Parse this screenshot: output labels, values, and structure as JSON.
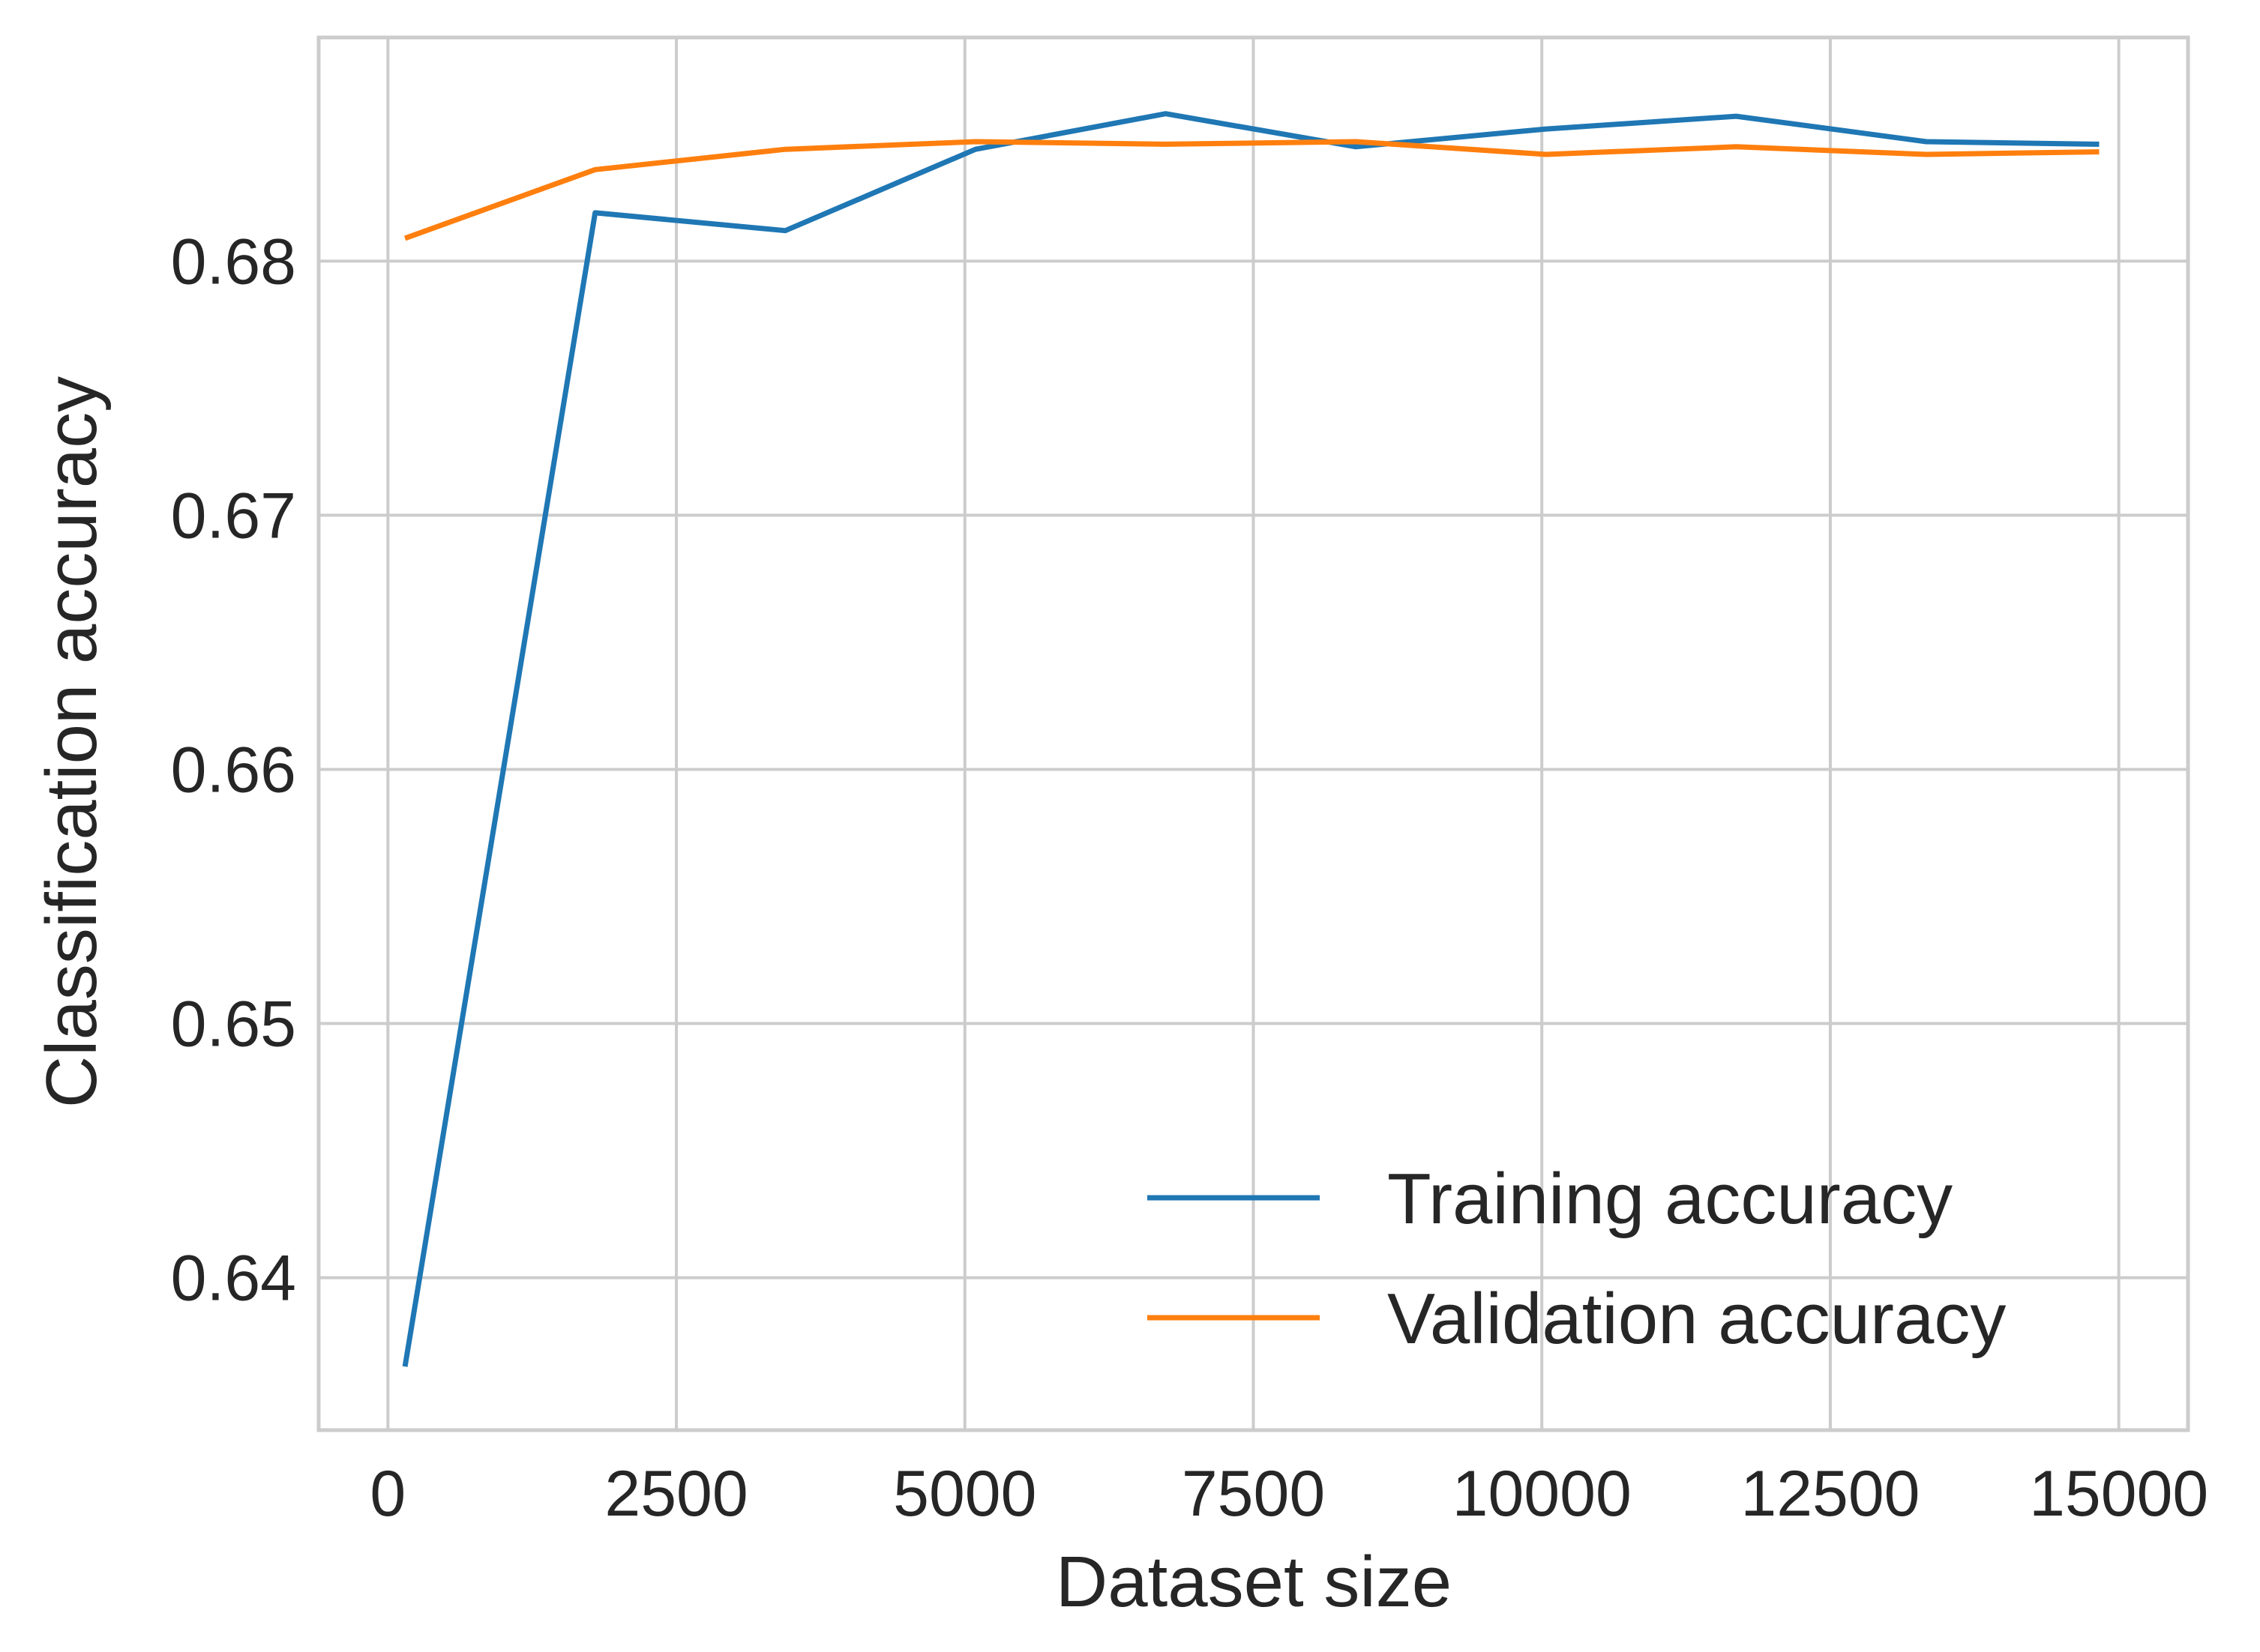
{
  "chart_data": {
    "type": "line",
    "title": "",
    "xlabel": "Dataset size",
    "ylabel": "Classification accuracy",
    "xlim": [
      -600,
      15600
    ],
    "ylim": [
      0.634,
      0.6888
    ],
    "xticks": [
      0,
      2500,
      5000,
      7500,
      10000,
      12500,
      15000
    ],
    "xtick_labels": [
      "0",
      "2500",
      "5000",
      "7500",
      "10000",
      "12500",
      "15000"
    ],
    "yticks": [
      0.64,
      0.65,
      0.66,
      0.67,
      0.68
    ],
    "ytick_labels": [
      "0.64",
      "0.65",
      "0.66",
      "0.67",
      "0.68"
    ],
    "grid": true,
    "legend_position": "lower-right",
    "series": [
      {
        "name": "Training accuracy",
        "color": "#1f77b4",
        "x": [
          148,
          1796,
          3444,
          5092,
          6740,
          8388,
          10036,
          11684,
          13332,
          14830
        ],
        "y": [
          0.6365,
          0.6819,
          0.6812,
          0.6844,
          0.6858,
          0.6845,
          0.6852,
          0.6857,
          0.6847,
          0.6846
        ]
      },
      {
        "name": "Validation accuracy",
        "color": "#ff7f0e",
        "x": [
          148,
          1796,
          3444,
          5092,
          6740,
          8388,
          10036,
          11684,
          13332,
          14830
        ],
        "y": [
          0.6809,
          0.6836,
          0.6844,
          0.6847,
          0.6846,
          0.6847,
          0.6842,
          0.6845,
          0.6842,
          0.6843
        ]
      }
    ]
  }
}
